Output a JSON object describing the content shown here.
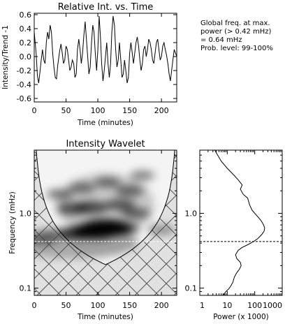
{
  "notes": {
    "line1": "Global freq. at max.",
    "line2": "power (> 0.42 mHz)",
    "line3": "= 0.64 mHz",
    "line4": "Prob. level: 99-100%"
  },
  "chart_data": [
    {
      "type": "line",
      "title": "Relative Int. vs. Time",
      "xlabel": "Time (minutes)",
      "ylabel": "Intensity/Trend -1",
      "xlim": [
        0,
        224
      ],
      "ylim": [
        -0.65,
        0.62
      ],
      "xticks": [
        0,
        50,
        100,
        150,
        200
      ],
      "yticks": [
        -0.6,
        -0.4,
        -0.2,
        0.0,
        0.2,
        0.4,
        0.6
      ],
      "ytick_labels": [
        "-0.6",
        "-0.4",
        "-0.2",
        "0.0",
        "0.2",
        "0.4",
        "0.6"
      ],
      "x": [
        0,
        3,
        5,
        7,
        9,
        11,
        13,
        15,
        17,
        19,
        21,
        23,
        25,
        27,
        29,
        31,
        33,
        35,
        37,
        40,
        42,
        44,
        46,
        48,
        50,
        52,
        54,
        56,
        58,
        60,
        62,
        64,
        66,
        68,
        70,
        72,
        74,
        76,
        78,
        80,
        82,
        84,
        86,
        88,
        90,
        92,
        94,
        96,
        98,
        100,
        102,
        104,
        106,
        108,
        110,
        112,
        114,
        116,
        118,
        120,
        122,
        124,
        126,
        128,
        130,
        132,
        134,
        136,
        138,
        140,
        142,
        144,
        146,
        148,
        150,
        152,
        154,
        156,
        158,
        160,
        162,
        164,
        166,
        168,
        170,
        172,
        174,
        176,
        178,
        180,
        182,
        184,
        186,
        188,
        190,
        192,
        194,
        196,
        198,
        200,
        202,
        204,
        206,
        208,
        210,
        212,
        214,
        216,
        218,
        220,
        222,
        224
      ],
      "values": [
        0.35,
        0.05,
        -0.28,
        -0.38,
        -0.22,
        -0.05,
        0.1,
        -0.05,
        -0.1,
        0.2,
        0.35,
        0.25,
        0.45,
        0.35,
        0.05,
        -0.15,
        -0.3,
        -0.32,
        -0.12,
        0.08,
        0.18,
        0.05,
        -0.1,
        -0.05,
        0.15,
        0.1,
        -0.05,
        -0.2,
        -0.15,
        -0.05,
        -0.1,
        -0.3,
        -0.25,
        0.1,
        0.25,
        0.1,
        -0.1,
        0.05,
        0.3,
        0.5,
        0.25,
        0.0,
        -0.25,
        -0.15,
        0.2,
        0.45,
        0.35,
        0.05,
        -0.2,
        0.1,
        0.58,
        0.3,
        -0.1,
        -0.35,
        -0.2,
        0.0,
        0.2,
        -0.1,
        -0.3,
        -0.1,
        0.35,
        0.58,
        0.45,
        0.1,
        -0.15,
        -0.05,
        0.2,
        -0.05,
        -0.3,
        -0.25,
        -0.05,
        -0.2,
        -0.38,
        -0.3,
        0.05,
        0.2,
        0.05,
        -0.1,
        0.05,
        0.2,
        0.28,
        0.15,
        -0.05,
        -0.2,
        -0.1,
        0.1,
        0.15,
        0.0,
        0.1,
        0.25,
        0.2,
        0.1,
        -0.05,
        -0.1,
        0.05,
        0.2,
        0.25,
        0.1,
        -0.05,
        0.0,
        0.15,
        0.2,
        0.1,
        0.02,
        -0.1,
        -0.25,
        -0.35,
        -0.2,
        -0.05,
        0.1,
        0.05,
        0.0
      ]
    },
    {
      "type": "heatmap",
      "title": "Intensity Wavelet",
      "xlabel": "Time (minutes)",
      "ylabel": "Frequency (mHz)",
      "xlim": [
        0,
        224
      ],
      "ylim": [
        0.08,
        7.0
      ],
      "yscale": "log",
      "xticks": [
        0,
        50,
        100,
        150,
        200
      ],
      "yticks": [
        0.1,
        1.0
      ],
      "ytick_labels": [
        "0.1",
        "1.0"
      ],
      "reference_frequency": 0.42,
      "cone_of_influence_min_frequency": 0.21,
      "cone_center_time": 110,
      "features": [
        {
          "time": 112,
          "frequency": 0.64,
          "strength": 1.0
        },
        {
          "time": 95,
          "frequency": 0.58,
          "strength": 0.9
        },
        {
          "time": 70,
          "frequency": 0.55,
          "strength": 0.6
        },
        {
          "time": 140,
          "frequency": 0.62,
          "strength": 0.5
        },
        {
          "time": 90,
          "frequency": 1.2,
          "strength": 0.55
        },
        {
          "time": 60,
          "frequency": 1.15,
          "strength": 0.5
        },
        {
          "time": 135,
          "frequency": 1.3,
          "strength": 0.45
        },
        {
          "time": 150,
          "frequency": 2.0,
          "strength": 0.4
        },
        {
          "time": 75,
          "frequency": 2.2,
          "strength": 0.35
        },
        {
          "time": 115,
          "frequency": 2.6,
          "strength": 0.35
        },
        {
          "time": 40,
          "frequency": 1.8,
          "strength": 0.35
        },
        {
          "time": 170,
          "frequency": 3.2,
          "strength": 0.3
        },
        {
          "time": 160,
          "frequency": 1.0,
          "strength": 0.4
        },
        {
          "time": 30,
          "frequency": 0.5,
          "strength": 0.45
        },
        {
          "time": 10,
          "frequency": 0.45,
          "strength": 0.5
        },
        {
          "time": 200,
          "frequency": 0.6,
          "strength": 0.35
        }
      ]
    },
    {
      "type": "line",
      "xlabel": "Power (x 1000)",
      "xscale": "log",
      "yscale": "log",
      "xlim": [
        1,
        1000
      ],
      "ylim": [
        0.08,
        7.0
      ],
      "xticks": [
        1,
        10,
        100,
        1000
      ],
      "xtick_labels": [
        "1",
        "10",
        "100",
        "1000"
      ],
      "yticks": [
        0.1,
        1.0
      ],
      "ytick_labels": [
        "0.1",
        "1.0"
      ],
      "reference_frequency": 0.42,
      "frequency": [
        7.0,
        5.0,
        4.0,
        3.2,
        2.8,
        2.4,
        2.1,
        1.8,
        1.6,
        1.3,
        1.1,
        1.0,
        0.9,
        0.8,
        0.7,
        0.64,
        0.58,
        0.52,
        0.46,
        0.42,
        0.38,
        0.35,
        0.32,
        0.28,
        0.25,
        0.22,
        0.2,
        0.18,
        0.16,
        0.14,
        0.12,
        0.11,
        0.1,
        0.09,
        0.08
      ],
      "power": [
        3.5,
        6,
        10,
        18,
        25,
        35,
        30,
        38,
        55,
        65,
        80,
        100,
        130,
        170,
        210,
        230,
        220,
        180,
        130,
        90,
        55,
        35,
        25,
        20,
        22,
        30,
        32,
        28,
        22,
        18,
        16,
        14,
        12,
        9,
        7
      ]
    }
  ]
}
